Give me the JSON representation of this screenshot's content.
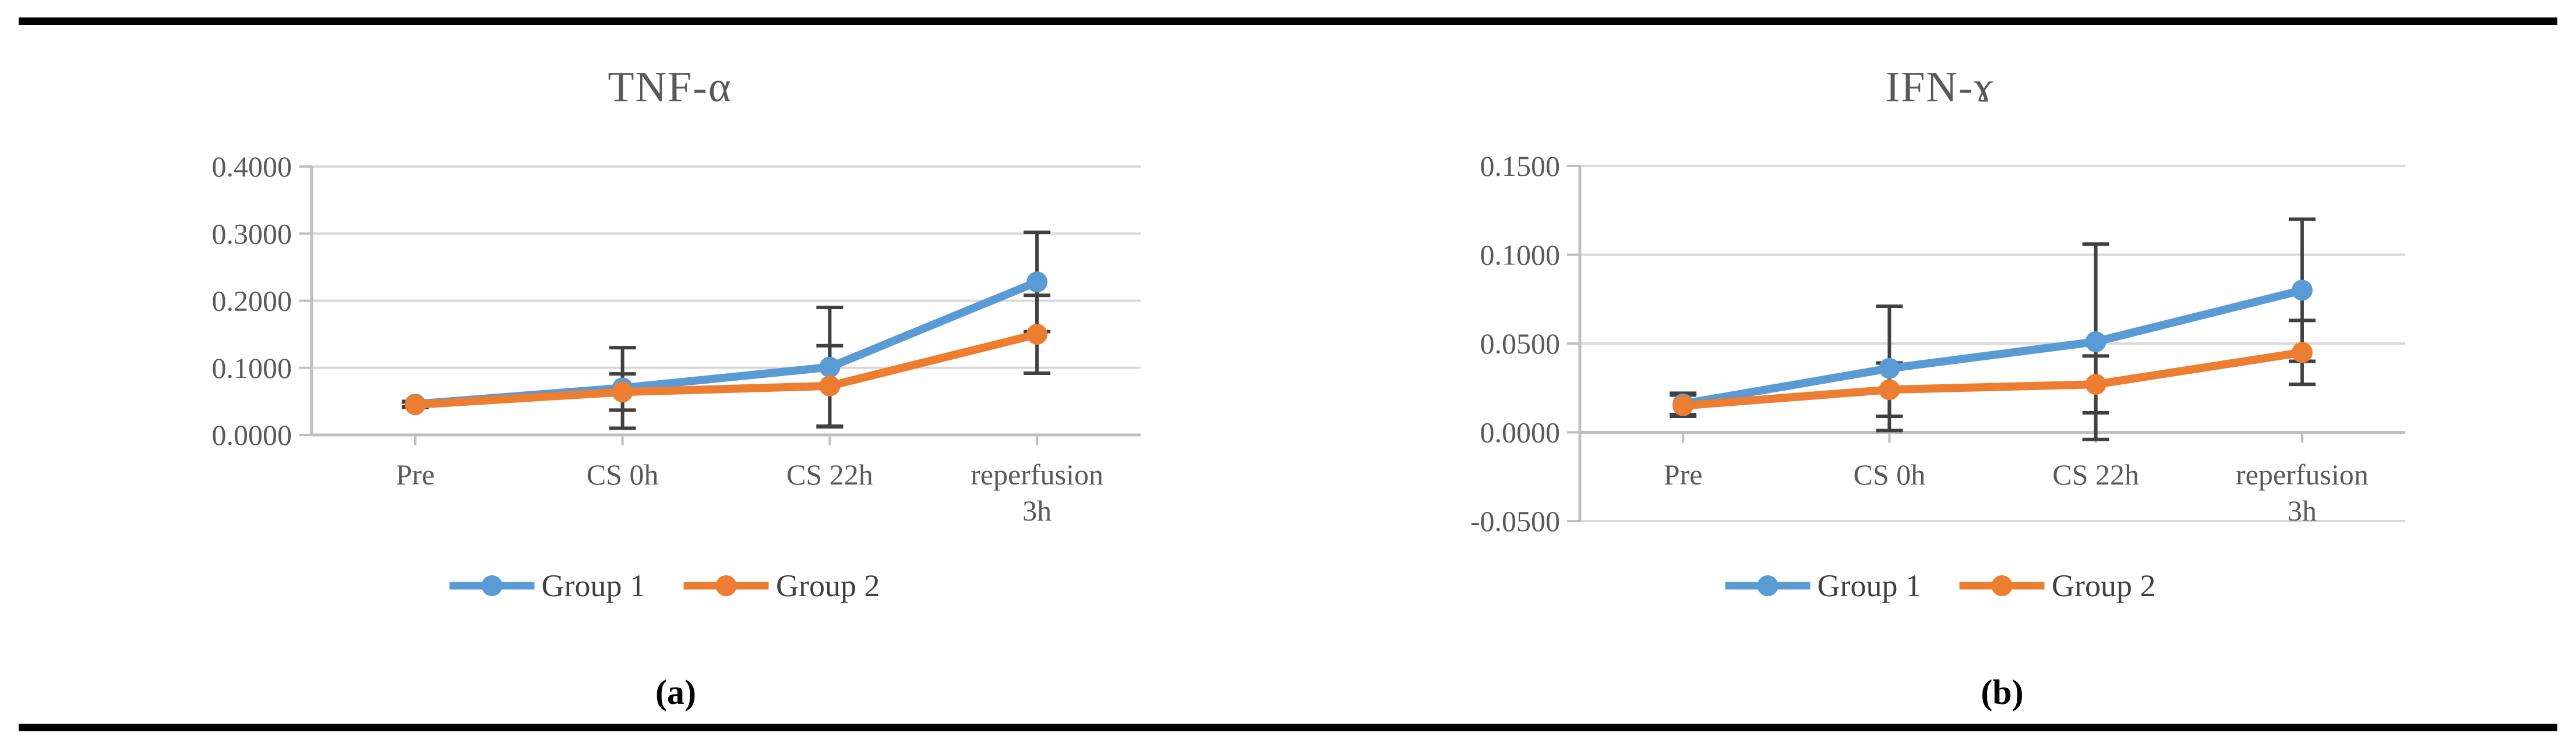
{
  "figure": {
    "captions": {
      "a": "(a)",
      "b": "(b)"
    }
  },
  "colors": {
    "group1": "#5B9BD5",
    "group2": "#ED7D31",
    "error_bar": "#404040",
    "gridline": "#D9D9D9",
    "axis_line": "#BFBFBF",
    "axis_text": "#595959",
    "title_text": "#595959",
    "caption_text": "#000000",
    "border_rule": "#000000"
  },
  "chart_data": [
    {
      "type": "line",
      "title": "TNF-α",
      "caption": "(a)",
      "categories": [
        "Pre",
        "CS 0h",
        "CS 22h",
        "reperfusion\n3h"
      ],
      "y_axis": {
        "min": 0.0,
        "max": 0.4,
        "step": 0.1,
        "decimals": 4
      },
      "y_tick_labels": [
        "0.0000",
        "0.1000",
        "0.2000",
        "0.3000",
        "0.4000"
      ],
      "grid": true,
      "legend_position": "bottom",
      "series": [
        {
          "name": "Group 1",
          "color": "#5B9BD5",
          "values": [
            0.046,
            0.07,
            0.101,
            0.228
          ],
          "errors": [
            0.004,
            0.06,
            0.089,
            0.074
          ]
        },
        {
          "name": "Group 2",
          "color": "#ED7D31",
          "values": [
            0.045,
            0.064,
            0.073,
            0.15
          ],
          "errors": [
            0.004,
            0.027,
            0.06,
            0.058
          ]
        }
      ]
    },
    {
      "type": "line",
      "title": "IFN-ɤ",
      "caption": "(b)",
      "categories": [
        "Pre",
        "CS 0h",
        "CS 22h",
        "reperfusion\n3h"
      ],
      "y_axis": {
        "min": -0.05,
        "max": 0.15,
        "step": 0.05,
        "decimals": 4
      },
      "y_tick_labels": [
        "-0.0500",
        "0.0000",
        "0.0500",
        "0.1000",
        "0.1500"
      ],
      "grid": true,
      "legend_position": "bottom",
      "series": [
        {
          "name": "Group 1",
          "color": "#5B9BD5",
          "values": [
            0.016,
            0.036,
            0.051,
            0.08
          ],
          "errors": [
            0.006,
            0.035,
            0.055,
            0.04
          ]
        },
        {
          "name": "Group 2",
          "color": "#ED7D31",
          "values": [
            0.015,
            0.024,
            0.027,
            0.045
          ],
          "errors": [
            0.006,
            0.015,
            0.016,
            0.018
          ]
        }
      ]
    }
  ]
}
